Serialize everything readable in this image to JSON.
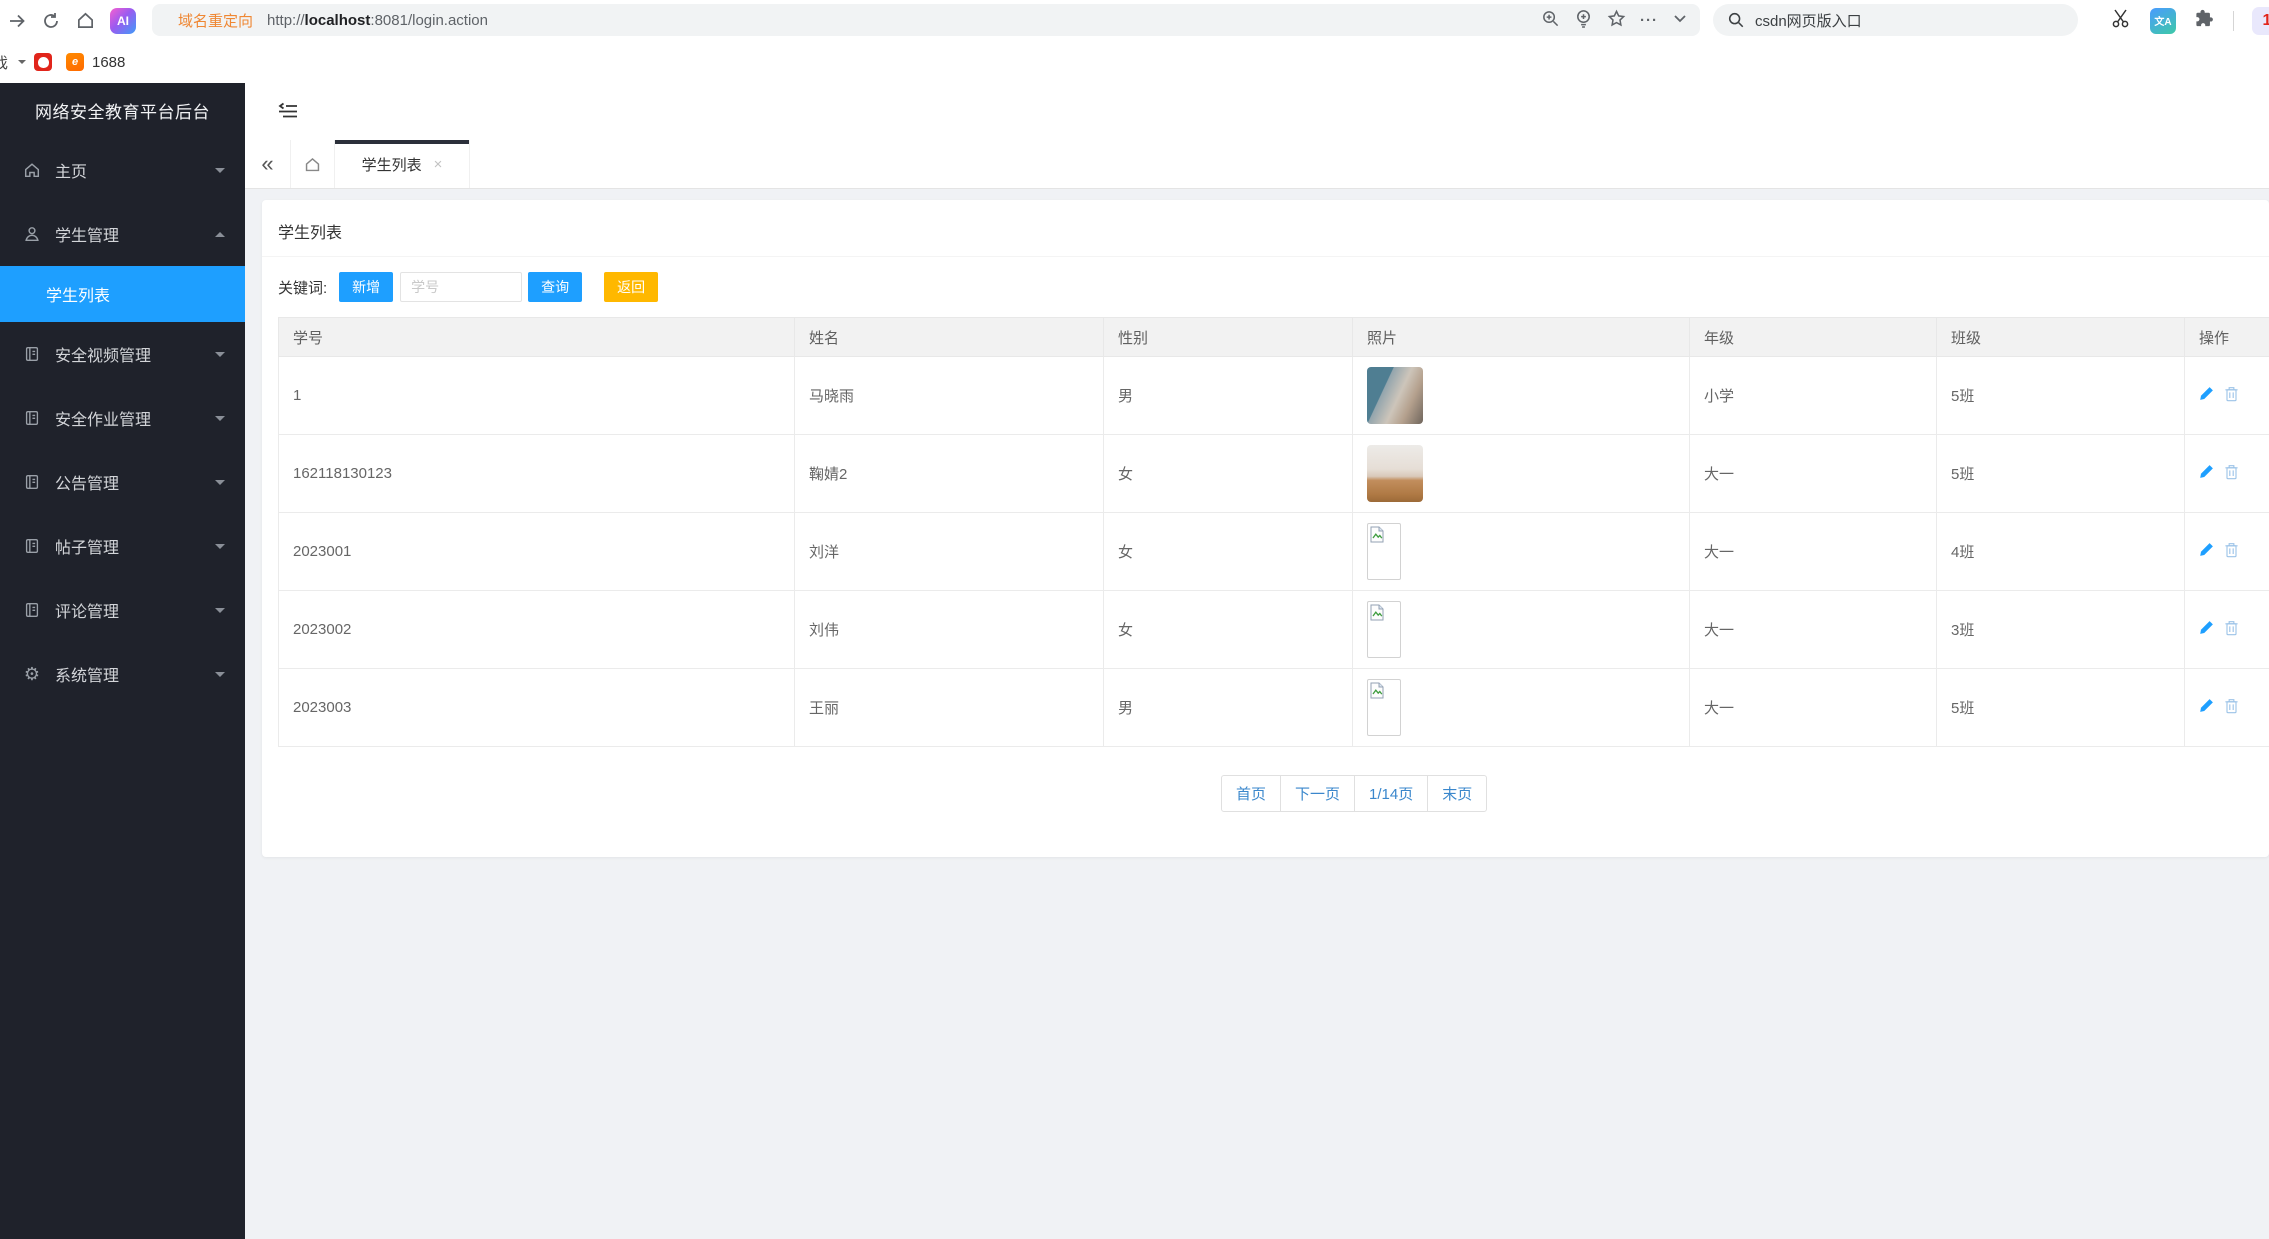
{
  "browser": {
    "url_prefix": "域名重定向",
    "url_scheme": "http://",
    "url_host": "localhost",
    "url_rest": ":8081/login.action",
    "search_placeholder": "csdn网页版入口",
    "bookmarks": {
      "clipped_label": "戏",
      "label_1688": "1688"
    },
    "more_dots": "···"
  },
  "sidebar": {
    "title": "网络安全教育平台后台",
    "items": [
      {
        "label": "主页",
        "icon": "home",
        "caret": "down"
      },
      {
        "label": "学生管理",
        "icon": "user",
        "caret": "up"
      },
      {
        "label": "学生列表",
        "child": true,
        "active": true
      },
      {
        "label": "安全视频管理",
        "icon": "doc",
        "caret": "down"
      },
      {
        "label": "安全作业管理",
        "icon": "doc",
        "caret": "down"
      },
      {
        "label": "公告管理",
        "icon": "doc",
        "caret": "down"
      },
      {
        "label": "帖子管理",
        "icon": "doc",
        "caret": "down"
      },
      {
        "label": "评论管理",
        "icon": "doc",
        "caret": "down"
      },
      {
        "label": "系统管理",
        "icon": "gear",
        "caret": "down"
      }
    ]
  },
  "tabbar": {
    "collapse": "«",
    "active_tab": "学生列表",
    "close": "×"
  },
  "content": {
    "title": "学生列表",
    "toolbar": {
      "keyword_label": "关键词:",
      "add_label": "新增",
      "input_placeholder": "学号",
      "search_label": "查询",
      "back_label": "返回"
    },
    "table": {
      "headers": [
        "学号",
        "姓名",
        "性别",
        "照片",
        "年级",
        "班级",
        "操作"
      ],
      "rows": [
        {
          "sid": "1",
          "name": "马晓雨",
          "gender": "男",
          "photo": "room",
          "grade": "小学",
          "clazz": "5班"
        },
        {
          "sid": "162118130123",
          "name": "鞠婧2",
          "gender": "女",
          "photo": "bed",
          "grade": "大一",
          "clazz": "5班"
        },
        {
          "sid": "2023001",
          "name": "刘洋",
          "gender": "女",
          "photo": "broken",
          "grade": "大一",
          "clazz": "4班"
        },
        {
          "sid": "2023002",
          "name": "刘伟",
          "gender": "女",
          "photo": "broken",
          "grade": "大一",
          "clazz": "3班"
        },
        {
          "sid": "2023003",
          "name": "王丽",
          "gender": "男",
          "photo": "broken",
          "grade": "大一",
          "clazz": "5班"
        }
      ]
    },
    "pagination": [
      "首页",
      "下一页",
      "1/14页",
      "末页"
    ]
  },
  "colors": {
    "accent": "#1e9fff",
    "warning": "#ffb800",
    "sidebar_bg": "#1f222b",
    "active_item": "#1e9fff"
  }
}
